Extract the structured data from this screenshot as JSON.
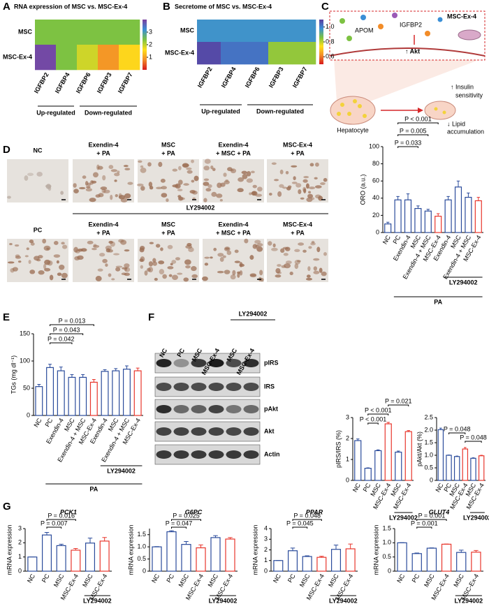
{
  "panel_labels": [
    "A",
    "B",
    "C",
    "D",
    "E",
    "F",
    "G"
  ],
  "chart_data": [
    {
      "type": "heatmap",
      "title": "RNA expression of MSC vs. MSC-Ex-4",
      "rows": [
        "MSC",
        "MSC-Ex-4"
      ],
      "columns": [
        "IGFBP2",
        "IGFBP4",
        "IGFBP6",
        "IGFBP3",
        "IGFBP7"
      ],
      "values": [
        [
          2.4,
          2.4,
          2.4,
          2.4,
          2.4
        ],
        [
          3.9,
          2.4,
          1.9,
          0.9,
          1.5
        ]
      ],
      "zlim": [
        0,
        4
      ],
      "zticks": [
        1,
        2,
        3
      ],
      "colorscale": [
        "#d7191c",
        "#f28c28",
        "#ffe01a",
        "#7dc242",
        "#3a8fd6",
        "#7b3f9e"
      ],
      "groups": [
        {
          "label": "Up-regulated",
          "from": 0,
          "to": 1
        },
        {
          "label": "Down-regulated",
          "from": 2,
          "to": 4
        }
      ]
    },
    {
      "type": "heatmap",
      "title": "Secretome of MSC vs. MSC-Ex-4",
      "rows": [
        "MSC",
        "MSC-Ex-4"
      ],
      "columns": [
        "IGFBP2",
        "IGFBP4",
        "IGFBP6",
        "IGFBP3",
        "IGFBP7"
      ],
      "values": [
        [
          0.97,
          0.97,
          0.97,
          0.97,
          0.97
        ],
        [
          1.08,
          1.02,
          1.02,
          0.84,
          0.84
        ]
      ],
      "zlim": [
        0.5,
        1.1
      ],
      "zticks": [
        0.6,
        0.8,
        {
          "value": 1.0,
          "label": "1.0"
        }
      ],
      "colorscale": [
        "#d7191c",
        "#f28c28",
        "#ffe01a",
        "#7dc242",
        "#3a8fd6",
        "#5a3c9e"
      ],
      "groups": [
        {
          "label": "Up-regulated",
          "from": 0,
          "to": 1
        },
        {
          "label": "Down-regulated",
          "from": 2,
          "to": 4
        }
      ]
    },
    {
      "type": "bar",
      "ylabel": "ORO (a.u.)",
      "categories": [
        "NC",
        "PC",
        "Exendin-4",
        "MSC",
        "Exendin-4 + MSC",
        "MSC-Ex-4",
        "Exendin-4",
        "MSC",
        "Exendin-4 + MSC",
        "MSC-Ex-4"
      ],
      "values": [
        10,
        38,
        38,
        28,
        25,
        19,
        38,
        53,
        41,
        37
      ],
      "errors": [
        2,
        4,
        7,
        3,
        2,
        3,
        4,
        7,
        5,
        4
      ],
      "colors": [
        "#2a4b9b",
        "#2a4b9b",
        "#2a4b9b",
        "#2a4b9b",
        "#2a4b9b",
        "#e8362c",
        "#2a4b9b",
        "#2a4b9b",
        "#2a4b9b",
        "#e8362c"
      ],
      "ylim": [
        0,
        100
      ],
      "yticks": [
        0,
        20,
        40,
        60,
        80,
        100
      ],
      "annotations": [
        {
          "label": "P < 0.001",
          "from": 1,
          "to": 5
        },
        {
          "label": "P = 0.005",
          "from": 1,
          "to": 4
        },
        {
          "label": "P = 0.033",
          "from": 1,
          "to": 3
        }
      ],
      "groups": [
        {
          "label": "LY294002",
          "from": 6,
          "to": 9
        },
        {
          "label": "PA",
          "from": 1,
          "to": 9
        }
      ]
    },
    {
      "type": "bar",
      "ylabel": "TGs (mg dl⁻¹)",
      "categories": [
        "NC",
        "PC",
        "Exendin-4",
        "MSC",
        "Exendin-4 + MSC",
        "MSC-Ex-4",
        "Exendin-4",
        "MSC",
        "Exendin-4 + MSC",
        "MSC-Ex-4"
      ],
      "values": [
        53,
        88,
        82,
        70,
        70,
        61,
        81,
        82,
        85,
        82
      ],
      "errors": [
        4,
        6,
        7,
        5,
        5,
        5,
        3,
        4,
        6,
        5
      ],
      "colors": [
        "#2a4b9b",
        "#2a4b9b",
        "#2a4b9b",
        "#2a4b9b",
        "#2a4b9b",
        "#e8362c",
        "#2a4b9b",
        "#2a4b9b",
        "#2a4b9b",
        "#e8362c"
      ],
      "ylim": [
        0,
        150
      ],
      "yticks": [
        0,
        50,
        100,
        150
      ],
      "annotations": [
        {
          "label": "P = 0.013",
          "from": 1,
          "to": 5
        },
        {
          "label": "P = 0.043",
          "from": 1,
          "to": 4
        },
        {
          "label": "P = 0.042",
          "from": 1,
          "to": 3
        }
      ],
      "groups": [
        {
          "label": "LY294002",
          "from": 6,
          "to": 9
        },
        {
          "label": "PA",
          "from": 1,
          "to": 9
        }
      ]
    },
    {
      "type": "bar",
      "ylabel": "pIRS/IRS (%)",
      "categories": [
        "NC",
        "PC",
        "MSC",
        "MSC-Ex-4",
        "MSC",
        "MSC-Ex-4"
      ],
      "values": [
        1.9,
        0.58,
        1.42,
        2.7,
        1.35,
        2.33
      ],
      "errors": [
        0.08,
        0.02,
        0.04,
        0.07,
        0.05,
        0.05
      ],
      "colors": [
        "#2a4b9b",
        "#2a4b9b",
        "#2a4b9b",
        "#e8362c",
        "#2a4b9b",
        "#e8362c"
      ],
      "ylim": [
        0,
        3
      ],
      "yticks": [
        0,
        1,
        2,
        3
      ],
      "annotations": [
        {
          "label": "P = 0.021",
          "from": 3,
          "to": 5
        },
        {
          "label": "P < 0.001",
          "from": 1,
          "to": 3
        },
        {
          "label": "P < 0.001",
          "from": 1,
          "to": 2
        }
      ],
      "groups": [
        {
          "label": "LY294002",
          "from": 4,
          "to": 5
        }
      ]
    },
    {
      "type": "bar",
      "ylabel": "pAkt/Akt (%)",
      "categories": [
        "NC",
        "PC",
        "MSC",
        "MSC-Ex-4",
        "MSC",
        "MSC-Ex-4"
      ],
      "values": [
        2.02,
        1.0,
        0.95,
        1.25,
        0.88,
        0.98
      ],
      "errors": [
        0.06,
        0.01,
        0.02,
        0.06,
        0.02,
        0.02
      ],
      "colors": [
        "#2a4b9b",
        "#2a4b9b",
        "#2a4b9b",
        "#e8362c",
        "#2a4b9b",
        "#e8362c"
      ],
      "ylim": [
        0,
        2.5
      ],
      "yticks": [
        0,
        0.5,
        {
          "value": 1.0,
          "label": "1.0"
        },
        1.5,
        {
          "value": 2.0,
          "label": "2.0"
        },
        2.5
      ],
      "annotations": [
        {
          "label": "P = 0.048",
          "from": 1,
          "to": 3
        },
        {
          "label": "P = 0.048",
          "from": 3,
          "to": 5
        }
      ],
      "groups": [
        {
          "label": "LY294002",
          "from": 4,
          "to": 5
        }
      ]
    },
    {
      "type": "bar",
      "title": "PCK1",
      "ylabel": "mRNA expression",
      "categories": [
        "NC",
        "PC",
        "MSC",
        "MSC-Ex-4",
        "MSC",
        "MSC-Ex-4"
      ],
      "values": [
        1.0,
        2.55,
        1.8,
        1.48,
        1.98,
        2.12
      ],
      "errors": [
        0.01,
        0.18,
        0.1,
        0.12,
        0.35,
        0.25
      ],
      "colors": [
        "#2a4b9b",
        "#2a4b9b",
        "#2a4b9b",
        "#e8362c",
        "#2a4b9b",
        "#e8362c"
      ],
      "ylim": [
        0,
        3
      ],
      "yticks": [
        0,
        1,
        2,
        3
      ],
      "annotations": [
        {
          "label": "P = 0.016",
          "from": 1,
          "to": 3
        },
        {
          "label": "P = 0.007",
          "from": 1,
          "to": 2
        }
      ],
      "groups": [
        {
          "label": "LY294002",
          "from": 4,
          "to": 5
        }
      ]
    },
    {
      "type": "bar",
      "title": "G6PC",
      "ylabel": "mRNA expression",
      "categories": [
        "NC",
        "PC",
        "MSC",
        "MSC-Ex-4",
        "MSC",
        "MSC-Ex-4"
      ],
      "values": [
        1.0,
        1.62,
        1.1,
        0.96,
        1.38,
        1.32
      ],
      "errors": [
        0.01,
        0.04,
        0.12,
        0.12,
        0.08,
        0.06
      ],
      "colors": [
        "#2a4b9b",
        "#2a4b9b",
        "#2a4b9b",
        "#e8362c",
        "#2a4b9b",
        "#e8362c"
      ],
      "ylim": [
        0,
        1.75
      ],
      "yticks": [
        0,
        0.5,
        {
          "value": 1.0,
          "label": "1.0"
        },
        1.5
      ],
      "annotations": [
        {
          "label": "P = 0.025",
          "from": 1,
          "to": 3
        },
        {
          "label": "P = 0.047",
          "from": 1,
          "to": 2
        }
      ],
      "groups": [
        {
          "label": "LY294002",
          "from": 4,
          "to": 5
        }
      ]
    },
    {
      "type": "bar",
      "title": "PPAR",
      "ylabel": "mRNA expression",
      "categories": [
        "NC",
        "PC",
        "MSC",
        "MSC-Ex-4",
        "MSC",
        "MSC-Ex-4"
      ],
      "values": [
        1.0,
        1.92,
        1.38,
        1.3,
        2.05,
        2.1
      ],
      "errors": [
        0.01,
        0.25,
        0.06,
        0.1,
        0.4,
        0.45
      ],
      "colors": [
        "#2a4b9b",
        "#2a4b9b",
        "#2a4b9b",
        "#e8362c",
        "#2a4b9b",
        "#e8362c"
      ],
      "ylim": [
        0,
        4
      ],
      "yticks": [
        0,
        1,
        2,
        3,
        4
      ],
      "annotations": [
        {
          "label": "P = 0.048",
          "from": 1,
          "to": 3
        },
        {
          "label": "P = 0.045",
          "from": 1,
          "to": 2
        }
      ],
      "groups": [
        {
          "label": "LY294002",
          "from": 4,
          "to": 5
        }
      ]
    },
    {
      "type": "bar",
      "title": "GLUT4",
      "ylabel": "mRNA expression",
      "categories": [
        "NC",
        "PC",
        "MSC",
        "MSC-Ex-4",
        "MSC",
        "MSC-Ex-4"
      ],
      "values": [
        1.0,
        0.62,
        0.81,
        0.95,
        0.66,
        0.67
      ],
      "errors": [
        0.005,
        0.02,
        0.01,
        0.005,
        0.08,
        0.06
      ],
      "colors": [
        "#2a4b9b",
        "#2a4b9b",
        "#2a4b9b",
        "#e8362c",
        "#2a4b9b",
        "#e8362c"
      ],
      "ylim": [
        0,
        1.5
      ],
      "yticks": [
        0,
        0.5,
        {
          "value": 1.0,
          "label": "1.0"
        },
        1.5
      ],
      "annotations": [
        {
          "label": "P = 0.001",
          "from": 1,
          "to": 3
        },
        {
          "label": "P = 0.001",
          "from": 1,
          "to": 2
        }
      ],
      "groups": [
        {
          "label": "LY294002",
          "from": 4,
          "to": 5
        }
      ]
    }
  ],
  "schematic": {
    "box_title": "MSC-Ex-4",
    "proteins": [
      "IGFBP2",
      "APOM"
    ],
    "signal": "↑ Akt",
    "cell": "Hepatocyte",
    "effects": [
      [
        "↑ Insulin",
        "sensitivity"
      ],
      [
        "↓ Lipid",
        "accumulation"
      ]
    ]
  },
  "micrographs": {
    "inhibitor": "LY294002",
    "rows": [
      {
        "label": "NC",
        "treatments": [
          [
            "Exendin-4",
            "+ PA"
          ],
          [
            "MSC",
            "+ PA"
          ],
          [
            "Exendin-4",
            "+ MSC + PA"
          ],
          [
            "MSC-Ex-4",
            "+ PA"
          ]
        ]
      },
      {
        "label": "PC",
        "treatments": [
          [
            "Exendin-4",
            "+ PA"
          ],
          [
            "MSC",
            "+ PA"
          ],
          [
            "Exendin-4",
            "+ MSC + PA"
          ],
          [
            "MSC-Ex-4",
            "+ PA"
          ]
        ]
      }
    ]
  },
  "blot": {
    "lanes": [
      "NC",
      "PC",
      "MSC",
      "MSC-Ex-4",
      "MSC",
      "MSC-Ex-4"
    ],
    "inhibitor": "LY294002",
    "bands": [
      "pIRS",
      "IRS",
      "pAkt",
      "Akt",
      "Actin"
    ]
  }
}
